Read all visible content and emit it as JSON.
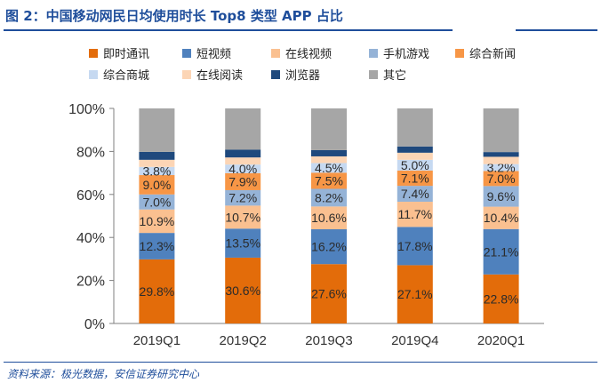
{
  "header": {
    "figure_title": "图 2：中国移动网民日均使用时长 Top8 类型 APP 占比"
  },
  "footer": {
    "source": "资料来源：极光数据，安信证券研究中心"
  },
  "colors": {
    "title": "#1f4e9b",
    "series": [
      "#e36c0a",
      "#4f81bd",
      "#fac090",
      "#95b3d7",
      "#f79646",
      "#c6d9f1",
      "#fcd5b5",
      "#1f497d",
      "#a6a6a6"
    ],
    "label_text": "#2b2b2b"
  },
  "chart_data": {
    "type": "bar",
    "stacked": true,
    "categories": [
      "2019Q1",
      "2019Q2",
      "2019Q3",
      "2019Q4",
      "2020Q1"
    ],
    "ylim": [
      0,
      100
    ],
    "yticks": [
      "0%",
      "20%",
      "40%",
      "60%",
      "80%",
      "100%"
    ],
    "legend_placement": "top",
    "series": [
      {
        "name": "即时通讯",
        "values": [
          29.8,
          30.6,
          27.6,
          27.1,
          22.8
        ],
        "labels": [
          "29.8%",
          "30.6%",
          "27.6%",
          "27.1%",
          "22.8%"
        ]
      },
      {
        "name": "短视频",
        "values": [
          12.3,
          13.5,
          16.2,
          17.8,
          21.1
        ],
        "labels": [
          "12.3%",
          "13.5%",
          "16.2%",
          "17.8%",
          "21.1%"
        ]
      },
      {
        "name": "在线视频",
        "values": [
          10.9,
          10.7,
          10.6,
          11.7,
          10.4
        ],
        "labels": [
          "10.9%",
          "10.7%",
          "10.6%",
          "11.7%",
          "10.4%"
        ]
      },
      {
        "name": "手机游戏",
        "values": [
          7.0,
          7.2,
          8.2,
          7.4,
          9.6
        ],
        "labels": [
          "7.0%",
          "7.2%",
          "8.2%",
          "7.4%",
          "9.6%"
        ]
      },
      {
        "name": "综合新闻",
        "values": [
          9.0,
          7.9,
          7.5,
          7.1,
          7.0
        ],
        "labels": [
          "9.0%",
          "7.9%",
          "7.5%",
          "7.1%",
          "7.0%"
        ]
      },
      {
        "name": "综合商城",
        "values": [
          3.8,
          4.0,
          4.5,
          5.0,
          3.2
        ],
        "labels": [
          "3.8%",
          "4.0%",
          "4.5%",
          "5.0%",
          "3.2%"
        ]
      },
      {
        "name": "在线阅读",
        "values": [
          3.3,
          3.3,
          3.1,
          3.3,
          3.4
        ],
        "labels": []
      },
      {
        "name": "浏览器",
        "values": [
          3.7,
          3.6,
          2.9,
          2.9,
          2.2
        ],
        "labels": []
      },
      {
        "name": "其它",
        "values": [
          20.2,
          19.2,
          19.4,
          17.7,
          20.3
        ],
        "labels": []
      }
    ]
  }
}
